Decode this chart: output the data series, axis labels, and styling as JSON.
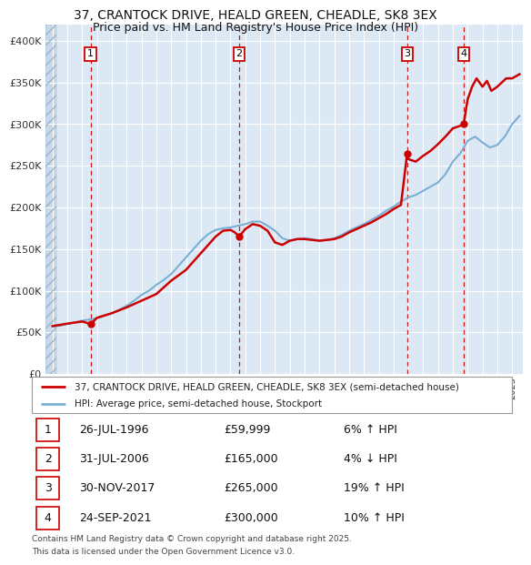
{
  "title1": "37, CRANTOCK DRIVE, HEALD GREEN, CHEADLE, SK8 3EX",
  "title2": "Price paid vs. HM Land Registry's House Price Index (HPI)",
  "legend_line1": "37, CRANTOCK DRIVE, HEALD GREEN, CHEADLE, SK8 3EX (semi-detached house)",
  "legend_line2": "HPI: Average price, semi-detached house, Stockport",
  "footer1": "Contains HM Land Registry data © Crown copyright and database right 2025.",
  "footer2": "This data is licensed under the Open Government Licence v3.0.",
  "transactions": [
    {
      "num": 1,
      "date": "26-JUL-1996",
      "price": 59999,
      "price_str": "£59,999",
      "pct": "6%",
      "dir": "↑",
      "year": 1996.57
    },
    {
      "num": 2,
      "date": "31-JUL-2006",
      "price": 165000,
      "price_str": "£165,000",
      "pct": "4%",
      "dir": "↓",
      "year": 2006.58
    },
    {
      "num": 3,
      "date": "30-NOV-2017",
      "price": 265000,
      "price_str": "£265,000",
      "pct": "19%",
      "dir": "↑",
      "year": 2017.92
    },
    {
      "num": 4,
      "date": "24-SEP-2021",
      "price": 300000,
      "price_str": "£300,000",
      "pct": "10%",
      "dir": "↑",
      "year": 2021.73
    }
  ],
  "ylim": [
    0,
    420000
  ],
  "yticks": [
    0,
    50000,
    100000,
    150000,
    200000,
    250000,
    300000,
    350000,
    400000
  ],
  "ytick_labels": [
    "£0",
    "£50K",
    "£100K",
    "£150K",
    "£200K",
    "£250K",
    "£300K",
    "£350K",
    "£400K"
  ],
  "xlim_start": 1993.5,
  "xlim_end": 2025.7,
  "bg_color": "#dce9f5",
  "hatch_edge_color": "#b8cfe0",
  "grid_color": "#ffffff",
  "red_line_color": "#cc0000",
  "blue_line_color": "#7aafd4",
  "marker_color": "#cc0000",
  "dashed_color": "#cc0000",
  "box_color": "#cc0000",
  "hpi_years": [
    1994.0,
    1994.5,
    1995.0,
    1995.5,
    1996.0,
    1996.5,
    1997.0,
    1997.5,
    1998.0,
    1998.5,
    1999.0,
    1999.5,
    2000.0,
    2000.5,
    2001.0,
    2001.5,
    2002.0,
    2002.5,
    2003.0,
    2003.5,
    2004.0,
    2004.5,
    2005.0,
    2005.5,
    2006.0,
    2006.5,
    2007.0,
    2007.5,
    2008.0,
    2008.5,
    2009.0,
    2009.5,
    2010.0,
    2010.5,
    2011.0,
    2011.5,
    2012.0,
    2012.5,
    2013.0,
    2013.5,
    2014.0,
    2014.5,
    2015.0,
    2015.5,
    2016.0,
    2016.5,
    2017.0,
    2017.5,
    2018.0,
    2018.5,
    2019.0,
    2019.5,
    2020.0,
    2020.5,
    2021.0,
    2021.5,
    2022.0,
    2022.5,
    2023.0,
    2023.5,
    2024.0,
    2024.5,
    2025.0,
    2025.5
  ],
  "hpi_values": [
    57000,
    58000,
    60000,
    62000,
    64000,
    65500,
    67000,
    70000,
    73000,
    77000,
    82000,
    88000,
    95000,
    100000,
    107000,
    113000,
    120000,
    130000,
    140000,
    150000,
    160000,
    168000,
    173000,
    175000,
    176000,
    178000,
    180000,
    183000,
    183000,
    178000,
    172000,
    163000,
    160000,
    162000,
    163000,
    162000,
    160000,
    161000,
    163000,
    167000,
    172000,
    176000,
    180000,
    185000,
    190000,
    196000,
    201000,
    207000,
    212000,
    215000,
    220000,
    225000,
    230000,
    240000,
    255000,
    265000,
    280000,
    285000,
    278000,
    272000,
    275000,
    285000,
    300000,
    310000
  ],
  "price_years": [
    1994.0,
    1995.0,
    1996.0,
    1996.57,
    1997.0,
    1998.0,
    1999.0,
    2000.0,
    2001.0,
    2002.0,
    2003.0,
    2004.0,
    2005.0,
    2005.5,
    2006.0,
    2006.3,
    2006.58,
    2007.0,
    2007.5,
    2008.0,
    2008.5,
    2009.0,
    2009.5,
    2010.0,
    2010.5,
    2011.0,
    2011.5,
    2012.0,
    2012.5,
    2013.0,
    2013.5,
    2014.0,
    2014.5,
    2015.0,
    2015.5,
    2016.0,
    2016.5,
    2017.0,
    2017.5,
    2017.92,
    2018.0,
    2018.5,
    2019.0,
    2019.5,
    2020.0,
    2020.5,
    2021.0,
    2021.5,
    2021.73,
    2022.0,
    2022.3,
    2022.6,
    2023.0,
    2023.3,
    2023.6,
    2024.0,
    2024.3,
    2024.6,
    2025.0,
    2025.5
  ],
  "price_values": [
    57500,
    60500,
    63000,
    59999,
    67500,
    73000,
    80000,
    88000,
    96000,
    112000,
    125000,
    145000,
    165000,
    172000,
    173000,
    170000,
    165000,
    174000,
    180000,
    178000,
    172000,
    158000,
    155000,
    160000,
    162000,
    162000,
    161000,
    160000,
    161000,
    162000,
    165000,
    170000,
    174000,
    178000,
    182000,
    187000,
    192000,
    198000,
    203000,
    265000,
    258000,
    255000,
    262000,
    268000,
    276000,
    285000,
    295000,
    298000,
    300000,
    330000,
    345000,
    355000,
    345000,
    352000,
    340000,
    345000,
    350000,
    355000,
    355000,
    360000
  ]
}
